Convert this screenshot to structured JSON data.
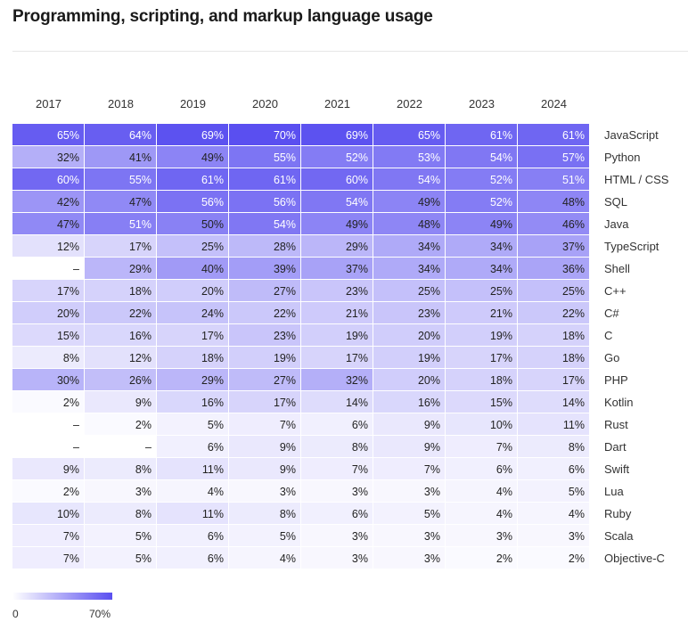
{
  "chart_data": {
    "type": "heatmap",
    "title": "Programming, scripting, and markup language usage",
    "years": [
      "2017",
      "2018",
      "2019",
      "2020",
      "2021",
      "2022",
      "2023",
      "2024"
    ],
    "rows": [
      {
        "language": "JavaScript",
        "labels": [
          "65%",
          "64%",
          "69%",
          "70%",
          "69%",
          "65%",
          "61%",
          "61%"
        ],
        "values": [
          65,
          64,
          69,
          70,
          69,
          65,
          61,
          61
        ]
      },
      {
        "language": "Python",
        "labels": [
          "32%",
          "41%",
          "49%",
          "55%",
          "52%",
          "53%",
          "54%",
          "57%"
        ],
        "values": [
          32,
          41,
          49,
          55,
          52,
          53,
          54,
          57
        ]
      },
      {
        "language": "HTML / CSS",
        "labels": [
          "60%",
          "55%",
          "61%",
          "61%",
          "60%",
          "54%",
          "52%",
          "51%"
        ],
        "values": [
          60,
          55,
          61,
          61,
          60,
          54,
          52,
          51
        ]
      },
      {
        "language": "SQL",
        "labels": [
          "42%",
          "47%",
          "56%",
          "56%",
          "54%",
          "49%",
          "52%",
          "48%"
        ],
        "values": [
          42,
          47,
          56,
          56,
          54,
          49,
          52,
          48
        ]
      },
      {
        "language": "Java",
        "labels": [
          "47%",
          "51%",
          "50%",
          "54%",
          "49%",
          "48%",
          "49%",
          "46%"
        ],
        "values": [
          47,
          51,
          50,
          54,
          49,
          48,
          49,
          46
        ]
      },
      {
        "language": "TypeScript",
        "labels": [
          "12%",
          "17%",
          "25%",
          "28%",
          "29%",
          "34%",
          "34%",
          "37%"
        ],
        "values": [
          12,
          17,
          25,
          28,
          29,
          34,
          34,
          37
        ]
      },
      {
        "language": "Shell",
        "labels": [
          "–",
          "29%",
          "40%",
          "39%",
          "37%",
          "34%",
          "34%",
          "36%"
        ],
        "values": [
          null,
          29,
          40,
          39,
          37,
          34,
          34,
          36
        ]
      },
      {
        "language": "C++",
        "labels": [
          "17%",
          "18%",
          "20%",
          "27%",
          "23%",
          "25%",
          "25%",
          "25%"
        ],
        "values": [
          17,
          18,
          20,
          27,
          23,
          25,
          25,
          25
        ]
      },
      {
        "language": "C#",
        "labels": [
          "20%",
          "22%",
          "24%",
          "22%",
          "21%",
          "23%",
          "21%",
          "22%"
        ],
        "values": [
          20,
          22,
          24,
          22,
          21,
          23,
          21,
          22
        ]
      },
      {
        "language": "C",
        "labels": [
          "15%",
          "16%",
          "17%",
          "23%",
          "19%",
          "20%",
          "19%",
          "18%"
        ],
        "values": [
          15,
          16,
          17,
          23,
          19,
          20,
          19,
          18
        ]
      },
      {
        "language": "Go",
        "labels": [
          "8%",
          "12%",
          "18%",
          "19%",
          "17%",
          "19%",
          "17%",
          "18%"
        ],
        "values": [
          8,
          12,
          18,
          19,
          17,
          19,
          17,
          18
        ]
      },
      {
        "language": "PHP",
        "labels": [
          "30%",
          "26%",
          "29%",
          "27%",
          "32%",
          "20%",
          "18%",
          "17%"
        ],
        "values": [
          30,
          26,
          29,
          27,
          32,
          20,
          18,
          17
        ]
      },
      {
        "language": "Kotlin",
        "labels": [
          "2%",
          "9%",
          "16%",
          "17%",
          "14%",
          "16%",
          "15%",
          "14%"
        ],
        "values": [
          2,
          9,
          16,
          17,
          14,
          16,
          15,
          14
        ]
      },
      {
        "language": "Rust",
        "labels": [
          "–",
          "2%",
          "5%",
          "7%",
          "6%",
          "9%",
          "10%",
          "11%"
        ],
        "values": [
          null,
          2,
          5,
          7,
          6,
          9,
          10,
          11
        ]
      },
      {
        "language": "Dart",
        "labels": [
          "–",
          "–",
          "6%",
          "9%",
          "8%",
          "9%",
          "7%",
          "8%"
        ],
        "values": [
          null,
          null,
          6,
          9,
          8,
          9,
          7,
          8
        ]
      },
      {
        "language": "Swift",
        "labels": [
          "9%",
          "8%",
          "11%",
          "9%",
          "7%",
          "7%",
          "6%",
          "6%"
        ],
        "values": [
          9,
          8,
          11,
          9,
          7,
          7,
          6,
          6
        ]
      },
      {
        "language": "Lua",
        "labels": [
          "2%",
          "3%",
          "4%",
          "3%",
          "3%",
          "3%",
          "4%",
          "5%"
        ],
        "values": [
          2,
          3,
          4,
          3,
          3,
          3,
          4,
          5
        ]
      },
      {
        "language": "Ruby",
        "labels": [
          "10%",
          "8%",
          "11%",
          "8%",
          "6%",
          "5%",
          "4%",
          "4%"
        ],
        "values": [
          10,
          8,
          11,
          8,
          6,
          5,
          4,
          4
        ]
      },
      {
        "language": "Scala",
        "labels": [
          "7%",
          "5%",
          "6%",
          "5%",
          "3%",
          "3%",
          "3%",
          "3%"
        ],
        "values": [
          7,
          5,
          6,
          5,
          3,
          3,
          3,
          3
        ]
      },
      {
        "language": "Objective-C",
        "labels": [
          "7%",
          "5%",
          "6%",
          "4%",
          "3%",
          "3%",
          "2%",
          "2%"
        ],
        "values": [
          7,
          5,
          6,
          4,
          3,
          3,
          2,
          2
        ]
      }
    ],
    "scale": {
      "min": 0,
      "max": 70,
      "min_label": "0",
      "max_label": "70%"
    },
    "colors": {
      "low": "#ffffff",
      "high": "#5a4ff0",
      "text": "#222222",
      "grid": "#ffffff"
    }
  }
}
